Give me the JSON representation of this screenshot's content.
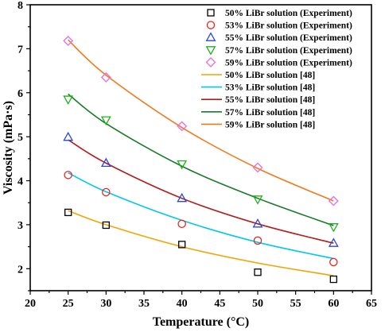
{
  "chart_data": {
    "type": "scatter",
    "xlabel": "Temperature (°C)",
    "ylabel": "Viscosity (mPa·s)",
    "xlim": [
      20,
      65
    ],
    "ylim": [
      1.5,
      8
    ],
    "xticks": [
      20,
      25,
      30,
      35,
      40,
      45,
      50,
      55,
      60,
      65
    ],
    "yticks": [
      2,
      3,
      4,
      5,
      6,
      7,
      8
    ],
    "grid": false,
    "legend_position": "top-right",
    "series": [
      {
        "name": "50% LiBr solution (Experiment)",
        "kind": "marker",
        "marker": "square",
        "color": "#000000",
        "x": [
          25,
          30,
          40,
          50,
          60
        ],
        "y": [
          3.28,
          2.99,
          2.55,
          1.92,
          1.76
        ]
      },
      {
        "name": "53% LiBr solution (Experiment)",
        "kind": "marker",
        "marker": "circle",
        "color": "#e8261e",
        "x": [
          25,
          30,
          40,
          50,
          60
        ],
        "y": [
          4.13,
          3.74,
          3.02,
          2.64,
          2.15
        ]
      },
      {
        "name": "55% LiBr solution (Experiment)",
        "kind": "marker",
        "marker": "triangle-up",
        "color": "#2a45e0",
        "x": [
          25,
          30,
          40,
          50,
          60
        ],
        "y": [
          4.99,
          4.4,
          3.6,
          3.02,
          2.58
        ]
      },
      {
        "name": "57% LiBr solution (Experiment)",
        "kind": "marker",
        "marker": "triangle-down",
        "color": "#1fb01f",
        "x": [
          25,
          30,
          40,
          50,
          60
        ],
        "y": [
          5.85,
          5.38,
          4.38,
          3.58,
          2.95
        ]
      },
      {
        "name": "59% LiBr solution (Experiment)",
        "kind": "marker",
        "marker": "diamond",
        "color": "#e86be0",
        "x": [
          25,
          30,
          40,
          50,
          60
        ],
        "y": [
          7.18,
          6.35,
          5.24,
          4.3,
          3.54
        ]
      },
      {
        "name": "50% LiBr solution [48]",
        "kind": "line",
        "color": "#f2a400",
        "x": [
          25,
          30,
          40,
          50,
          60
        ],
        "y": [
          3.32,
          3.0,
          2.5,
          2.13,
          1.84
        ]
      },
      {
        "name": "53% LiBr solution [48]",
        "kind": "line",
        "color": "#00c8e8",
        "x": [
          25,
          30,
          40,
          50,
          60
        ],
        "y": [
          4.18,
          3.75,
          3.1,
          2.6,
          2.23
        ]
      },
      {
        "name": "55% LiBr solution [48]",
        "kind": "line",
        "color": "#b51c1c",
        "x": [
          25,
          30,
          40,
          50,
          60
        ],
        "y": [
          4.93,
          4.4,
          3.6,
          3.02,
          2.58
        ]
      },
      {
        "name": "57% LiBr solution [48]",
        "kind": "line",
        "color": "#1b7a2a",
        "x": [
          25,
          30,
          40,
          50,
          60
        ],
        "y": [
          5.97,
          5.3,
          4.33,
          3.6,
          2.98
        ]
      },
      {
        "name": "59% LiBr solution [48]",
        "kind": "line",
        "color": "#f07a1a",
        "x": [
          25,
          30,
          40,
          50,
          60
        ],
        "y": [
          7.2,
          6.4,
          5.21,
          4.28,
          3.54
        ]
      }
    ]
  }
}
